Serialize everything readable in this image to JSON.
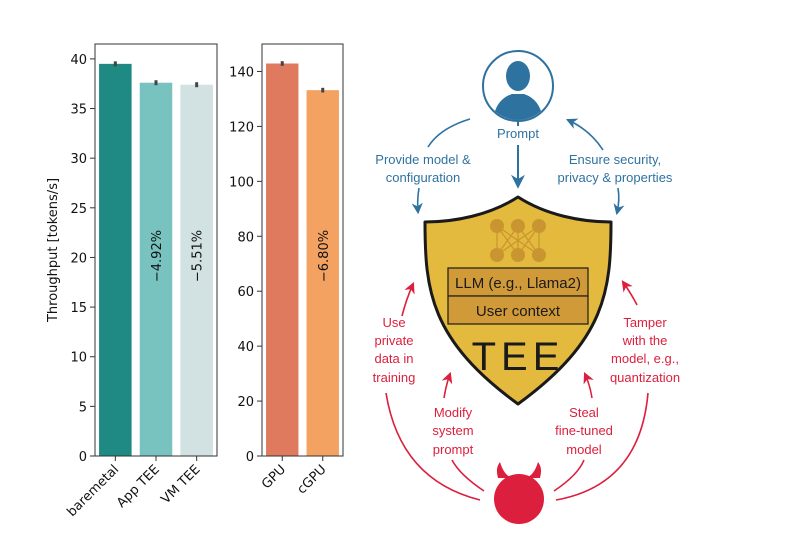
{
  "chart_data": [
    {
      "type": "bar",
      "title": "",
      "xlabel": "",
      "ylabel": "Throughput [tokens/s]",
      "categories": [
        "baremetal",
        "App TEE",
        "VM TEE"
      ],
      "values": [
        39.5,
        37.6,
        37.4
      ],
      "error_bars": [
        0.1,
        0.1,
        0.1
      ],
      "colors": [
        "#1f8a83",
        "#78c3c0",
        "#d2e1e1"
      ],
      "annotations": [
        "",
        "−4.92%",
        "−5.51%"
      ],
      "yticks": [
        0,
        5,
        10,
        15,
        20,
        25,
        30,
        35,
        40
      ],
      "ylim": [
        0,
        41.5
      ],
      "grid": false
    },
    {
      "type": "bar",
      "title": "",
      "xlabel": "",
      "ylabel": "",
      "categories": [
        "GPU",
        "cGPU"
      ],
      "values": [
        142.9,
        133.2
      ],
      "error_bars": [
        0.3,
        0.3
      ],
      "colors": [
        "#e07a5f",
        "#f4a261"
      ],
      "annotations": [
        "",
        "−6.80%"
      ],
      "yticks": [
        0,
        20,
        40,
        60,
        80,
        100,
        120,
        140
      ],
      "ylim": [
        0,
        150
      ],
      "grid": false
    }
  ],
  "diagram": {
    "user_label": "Prompt",
    "left_top_label": [
      "Provide model &",
      "configuration"
    ],
    "right_top_label": [
      "Ensure security,",
      "privacy & properties"
    ],
    "shield": {
      "box1": "LLM (e.g., Llama2)",
      "box2": "User context",
      "title": "TEE"
    },
    "threats": {
      "left_outer": [
        "Use",
        "private",
        "data in",
        "training"
      ],
      "left_inner": [
        "Modify",
        "system",
        "prompt"
      ],
      "right_inner": [
        "Steal",
        "fine-tuned",
        "model"
      ],
      "right_outer": [
        "Tamper",
        "with the",
        "model, e.g.,",
        "quantization"
      ]
    },
    "colors": {
      "blue": "#2e72a0",
      "red": "#dc1f3c",
      "shield_fill": "#e3b93e",
      "shield_box": "#d19a38",
      "shield_net": "#c99530"
    }
  }
}
